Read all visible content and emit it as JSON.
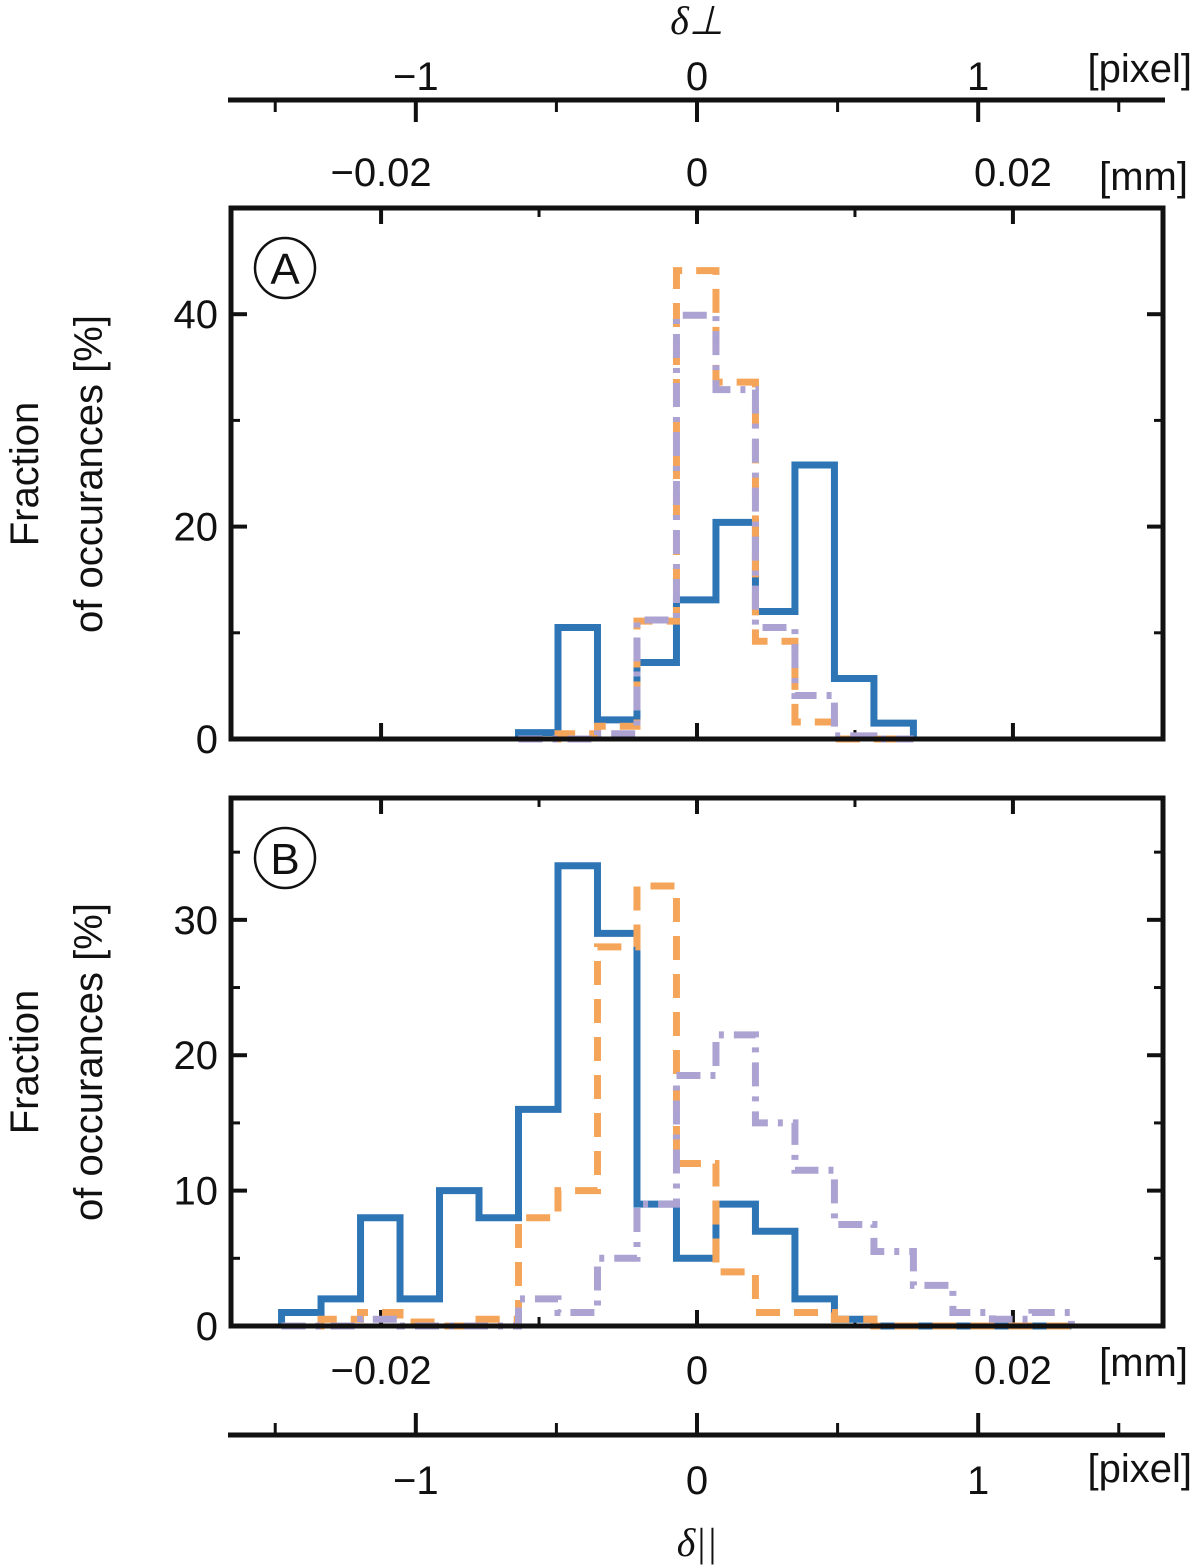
{
  "chart_data": [
    {
      "type": "histogram",
      "panel": "A",
      "axis_title": "δ⊥",
      "ylabel": [
        "Fraction",
        "of occurances [%]"
      ],
      "ylim": [
        0,
        50
      ],
      "y_ticks": [
        0,
        20,
        40
      ],
      "y_minor_ticks": [
        10,
        30
      ],
      "xlim_mm": [
        -0.0295,
        0.0295
      ],
      "x_mm_ticks": [
        -0.02,
        0,
        0.02
      ],
      "x_mm_tick_labels": [
        "−0.02",
        "0",
        "0.02"
      ],
      "x_mm_minor_ticks": [
        -0.01,
        0.01
      ],
      "mm_unit": "[mm]",
      "pixel_axis": {
        "mm_per_pixel": 0.0178,
        "ticks": [
          -1,
          0,
          1
        ],
        "tick_labels": [
          "−1",
          "0",
          "1"
        ],
        "minor_ticks": [
          -1.5,
          -0.5,
          0.5,
          1.5
        ],
        "unit": "[pixel]"
      },
      "bin_edges_mm": [
        -0.0113,
        -0.0088,
        -0.0063,
        -0.0038,
        -0.0013,
        0.0012,
        0.0037,
        0.0062,
        0.0087,
        0.0112,
        0.0137
      ],
      "series": [
        {
          "name": "blue",
          "color": "#2e75b6",
          "style": "solid",
          "values": [
            0.6,
            10.5,
            1.8,
            7.2,
            13.1,
            20.4,
            12.0,
            25.8,
            5.7,
            1.5
          ]
        },
        {
          "name": "orange",
          "color": "#f5a55a",
          "style": "dashed",
          "values": [
            0,
            0.5,
            1.2,
            11.1,
            44.1,
            33.6,
            9.2,
            1.6,
            0,
            0
          ]
        },
        {
          "name": "purple",
          "color": "#ada3d3",
          "style": "dashdot",
          "values": [
            0,
            0,
            0.5,
            11.2,
            39.9,
            32.9,
            10.5,
            4.1,
            0.3,
            0
          ]
        }
      ]
    },
    {
      "type": "histogram",
      "panel": "B",
      "axis_title": "δ||",
      "ylabel": [
        "Fraction",
        "of occurances [%]"
      ],
      "ylim": [
        0,
        39
      ],
      "y_ticks": [
        0,
        10,
        20,
        30
      ],
      "y_minor_ticks": [
        5,
        15,
        25,
        35
      ],
      "xlim_mm": [
        -0.0295,
        0.0295
      ],
      "x_mm_ticks": [
        -0.02,
        0,
        0.02
      ],
      "x_mm_tick_labels": [
        "−0.02",
        "0",
        "0.02"
      ],
      "x_mm_minor_ticks": [
        -0.01,
        0.01
      ],
      "mm_unit": "[mm]",
      "pixel_axis": {
        "mm_per_pixel": 0.0178,
        "ticks": [
          -1,
          0,
          1
        ],
        "tick_labels": [
          "−1",
          "0",
          "1"
        ],
        "minor_ticks": [
          -1.5,
          -0.5,
          0.5,
          1.5
        ],
        "unit": "[pixel]"
      },
      "bin_edges_mm": [
        -0.0263,
        -0.0238,
        -0.0213,
        -0.0188,
        -0.0163,
        -0.0138,
        -0.0113,
        -0.0088,
        -0.0063,
        -0.0038,
        -0.0013,
        0.0012,
        0.0037,
        0.0062,
        0.0087,
        0.0112,
        0.0137,
        0.0162,
        0.0187,
        0.0212,
        0.0237
      ],
      "series": [
        {
          "name": "blue",
          "color": "#2e75b6",
          "style": "solid",
          "values": [
            1.0,
            2.0,
            8.0,
            2.0,
            10.0,
            8.0,
            16.0,
            34.0,
            29.0,
            9.0,
            5.0,
            9.0,
            7.0,
            2.0,
            0.5,
            0,
            0,
            0,
            0,
            0
          ]
        },
        {
          "name": "orange",
          "color": "#f5a55a",
          "style": "dashed",
          "values": [
            0,
            0.5,
            1.0,
            0.3,
            0,
            0.5,
            8.0,
            10.0,
            28.0,
            32.5,
            12.0,
            4.0,
            1.0,
            1.0,
            0.5,
            0,
            0,
            0,
            0,
            0
          ]
        },
        {
          "name": "purple",
          "color": "#ada3d3",
          "style": "dashdot",
          "values": [
            0,
            0,
            0.5,
            0,
            0,
            0,
            2.0,
            1.0,
            5.0,
            9.0,
            18.5,
            21.5,
            15.0,
            11.5,
            7.5,
            5.5,
            3.0,
            1.0,
            0.5,
            1.0
          ]
        }
      ]
    }
  ]
}
